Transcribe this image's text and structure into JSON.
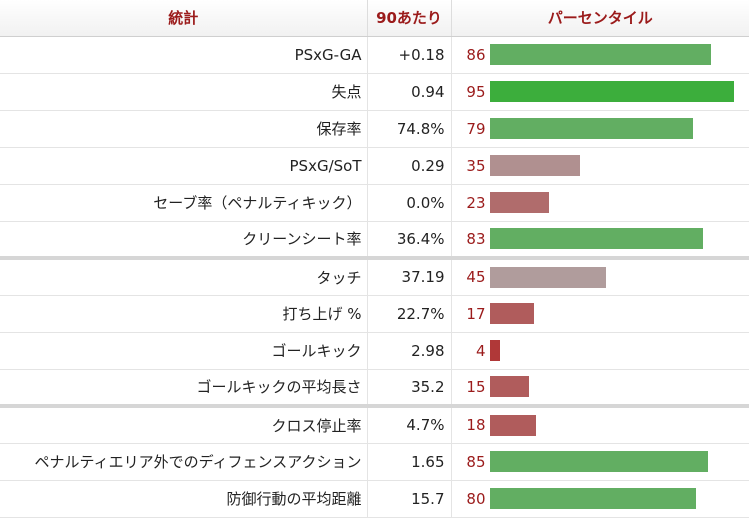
{
  "headers": {
    "stat": "統計",
    "per90": "90あたり",
    "percentile": "パーセンタイル"
  },
  "colors": {
    "header_text": "#9b1b1b",
    "high": "#62ae62",
    "top": "#3cae3c",
    "mid": "#b09090",
    "low": "#b06c6c",
    "bottom": "#b03838"
  },
  "groups": [
    {
      "rows": [
        {
          "stat": "PSxG-GA",
          "per90": "+0.18",
          "percentile": 86,
          "color": "#62ae62"
        },
        {
          "stat": "失点",
          "per90": "0.94",
          "percentile": 95,
          "color": "#3cae3c"
        },
        {
          "stat": "保存率",
          "per90": "74.8%",
          "percentile": 79,
          "color": "#62ae62"
        },
        {
          "stat": "PSxG/SoT",
          "per90": "0.29",
          "percentile": 35,
          "color": "#b09090"
        },
        {
          "stat": "セーブ率（ペナルティキック）",
          "per90": "0.0%",
          "percentile": 23,
          "color": "#b06c6c"
        },
        {
          "stat": "クリーンシート率",
          "per90": "36.4%",
          "percentile": 83,
          "color": "#62ae62"
        }
      ]
    },
    {
      "rows": [
        {
          "stat": "タッチ",
          "per90": "37.19",
          "percentile": 45,
          "color": "#b09c9c"
        },
        {
          "stat": "打ち上げ %",
          "per90": "22.7%",
          "percentile": 17,
          "color": "#b05c5c"
        },
        {
          "stat": "ゴールキック",
          "per90": "2.98",
          "percentile": 4,
          "color": "#b03838"
        },
        {
          "stat": "ゴールキックの平均長さ",
          "per90": "35.2",
          "percentile": 15,
          "color": "#b05c5c"
        }
      ]
    },
    {
      "rows": [
        {
          "stat": "クロス停止率",
          "per90": "4.7%",
          "percentile": 18,
          "color": "#b05c5c"
        },
        {
          "stat": "ペナルティエリア外でのディフェンスアクション",
          "per90": "1.65",
          "percentile": 85,
          "color": "#62ae62"
        },
        {
          "stat": "防御行動の平均距離",
          "per90": "15.7",
          "percentile": 80,
          "color": "#62ae62"
        }
      ]
    }
  ]
}
